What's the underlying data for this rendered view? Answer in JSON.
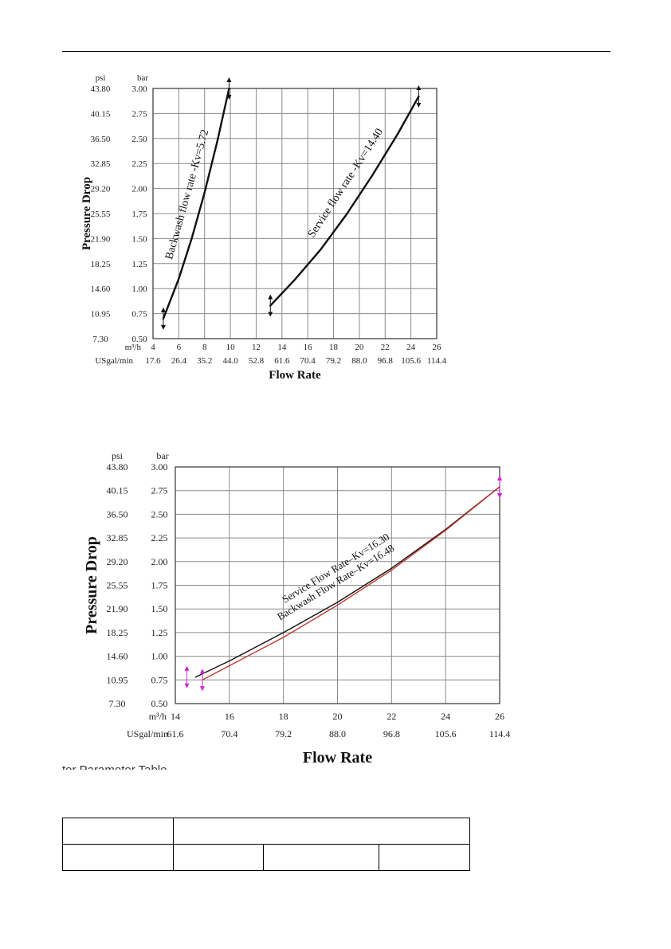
{
  "charts": [
    {
      "id": "chart1",
      "unit_top_left": "psi",
      "unit_top_right": "bar",
      "xunit_top": "m³/h",
      "xunit_bottom": "USgal/min",
      "ylabel": "Pressure Drop",
      "xlabel": "Flow Rate",
      "tall_band": "normal"
    },
    {
      "id": "chart2",
      "unit_top_left": "psi",
      "unit_top_right": "bar",
      "xunit_top": "m³/h",
      "xunit_bottom": "USgal/min",
      "ylabel": "Pressure Drop",
      "xlabel": "Flow Rate"
    }
  ],
  "chart_data": [
    {
      "type": "line",
      "title": "",
      "xlabel": "Flow Rate",
      "ylabel": "Pressure Drop",
      "xlim": [
        4,
        26
      ],
      "ylim": [
        0.5,
        3.0
      ],
      "x_ticks_m3h": [
        4,
        6,
        8,
        10,
        12,
        14,
        16,
        18,
        20,
        22,
        24,
        26
      ],
      "x_ticks_usgal": [
        "17.6",
        "26.4",
        "35.2",
        "44.0",
        "52.8",
        "61.6",
        "70.4",
        "79.2",
        "88.0",
        "96.8",
        "105.6",
        "114.4"
      ],
      "y_ticks_bar": [
        "0.50",
        "0.75",
        "1.00",
        "1.25",
        "1.50",
        "1.75",
        "2.00",
        "2.25",
        "2.50",
        "2.75",
        "3.00"
      ],
      "y_ticks_psi": [
        "7.30",
        "10.95",
        "14.60",
        "18.25",
        "21.90",
        "25.55",
        "29.20",
        "32.85",
        "36.50",
        "40.15",
        "43.80"
      ],
      "grid": true,
      "color": "#111111",
      "series": [
        {
          "name": "Backwash flow rate -Kv=5.72",
          "x": [
            4.8,
            6,
            7,
            8,
            9,
            9.9
          ],
          "y": [
            0.7,
            1.1,
            1.5,
            1.96,
            2.48,
            3.0
          ]
        },
        {
          "name": "Service flow rate -Kv=14.40",
          "x": [
            13.1,
            15,
            17,
            19,
            21,
            23,
            24.6
          ],
          "y": [
            0.83,
            1.09,
            1.39,
            1.74,
            2.13,
            2.55,
            2.92
          ]
        }
      ]
    },
    {
      "type": "line",
      "title": "",
      "xlabel": "Flow Rate",
      "ylabel": "Pressure Drop",
      "xlim": [
        14,
        26
      ],
      "ylim": [
        0.5,
        3.0
      ],
      "x_ticks_m3h": [
        14,
        16,
        18,
        20,
        22,
        24,
        26
      ],
      "x_ticks_usgal": [
        "61.6",
        "70.4",
        "79.2",
        "88.0",
        "96.8",
        "105.6",
        "114.4"
      ],
      "y_ticks_bar": [
        "0.50",
        "0.75",
        "1.00",
        "1.25",
        "1.50",
        "1.75",
        "2.00",
        "2.25",
        "2.50",
        "2.75",
        "3.00"
      ],
      "y_ticks_psi": [
        "7.30",
        "10.95",
        "14.60",
        "18.25",
        "21.90",
        "25.55",
        "29.20",
        "32.85",
        "36.50",
        "40.15",
        "43.80"
      ],
      "grid": true,
      "series": [
        {
          "name": "Service Flow Rate–Kv=16.30",
          "color": "#111111",
          "x": [
            14.75,
            16,
            18,
            20,
            22,
            24,
            26
          ],
          "y": [
            0.78,
            0.95,
            1.25,
            1.57,
            1.93,
            2.34,
            2.79
          ]
        },
        {
          "name": "Backwash Flow Rate–Kv=16.48",
          "color": "#c0392b",
          "x": [
            15.0,
            16,
            18,
            20,
            22,
            24,
            26
          ],
          "y": [
            0.75,
            0.9,
            1.2,
            1.54,
            1.91,
            2.33,
            2.79
          ]
        }
      ]
    }
  ],
  "section_heading_fragment": "ter Parameter Table",
  "table": {
    "rows": [
      [
        "",
        ""
      ],
      [
        "",
        "",
        "",
        ""
      ]
    ]
  }
}
